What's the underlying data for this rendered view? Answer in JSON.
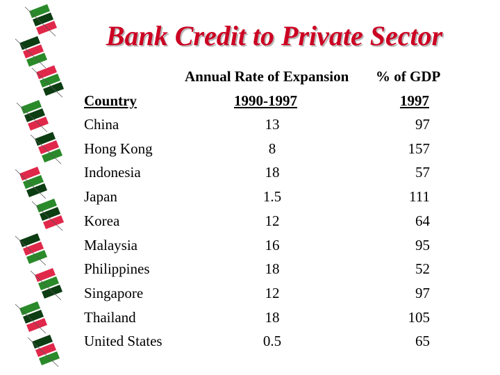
{
  "slide": {
    "title": "Bank Credit to Private Sector",
    "header_line1": {
      "expansion": "Annual Rate of Expansion",
      "gdp": "% of GDP"
    },
    "header_line2": {
      "country": "Country",
      "expansion_period": "1990-1997",
      "gdp_year": "1997"
    }
  },
  "table": {
    "rows": [
      {
        "country": "China",
        "expansion": "13",
        "gdp": "97"
      },
      {
        "country": "Hong Kong",
        "expansion": "8",
        "gdp": "157"
      },
      {
        "country": "Indonesia",
        "expansion": "18",
        "gdp": "57"
      },
      {
        "country": "Japan",
        "expansion": "1.5",
        "gdp": "111"
      },
      {
        "country": "Korea",
        "expansion": "12",
        "gdp": "64"
      },
      {
        "country": "Malaysia",
        "expansion": "16",
        "gdp": "95"
      },
      {
        "country": "Philippines",
        "expansion": "18",
        "gdp": "52"
      },
      {
        "country": "Singapore",
        "expansion": "12",
        "gdp": "97"
      },
      {
        "country": "Thailand",
        "expansion": "18",
        "gdp": "105"
      },
      {
        "country": "United States",
        "expansion": "0.5",
        "gdp": "65"
      }
    ]
  },
  "colors": {
    "title": "#cc0022",
    "deco_green": "#2a8a2a",
    "deco_dark": "#0d3d12",
    "deco_red": "#e0284a"
  }
}
